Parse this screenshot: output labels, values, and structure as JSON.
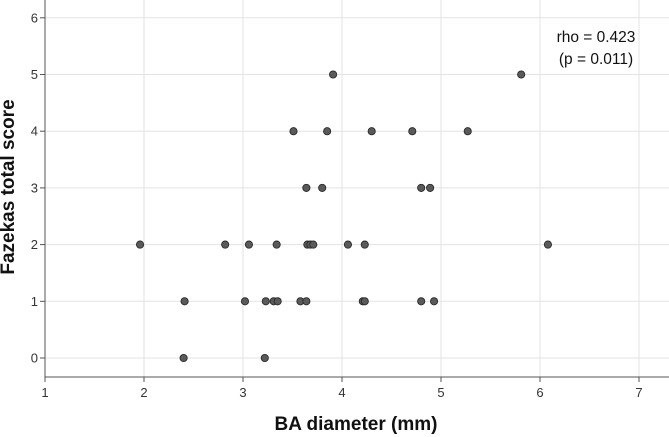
{
  "chart_data": {
    "type": "scatter",
    "title": "",
    "xlabel": "BA diameter (mm)",
    "ylabel": "Fazekas total score",
    "xlim": [
      1,
      7.3
    ],
    "ylim": [
      -0.3,
      6.3
    ],
    "xticks": [
      "1",
      "2",
      "3",
      "4",
      "5",
      "6",
      "7"
    ],
    "yticks": [
      "0",
      "1",
      "2",
      "3",
      "4",
      "5",
      "6"
    ],
    "grid": true,
    "legend": "none",
    "annotation": [
      "rho = 0.423",
      "(p = 0.011)"
    ],
    "point_color": "#5a5a5a",
    "points": [
      {
        "x": 1.96,
        "y": 2
      },
      {
        "x": 2.82,
        "y": 2
      },
      {
        "x": 3.06,
        "y": 2
      },
      {
        "x": 3.34,
        "y": 2
      },
      {
        "x": 3.65,
        "y": 2
      },
      {
        "x": 3.68,
        "y": 2
      },
      {
        "x": 3.71,
        "y": 2
      },
      {
        "x": 4.06,
        "y": 2
      },
      {
        "x": 4.23,
        "y": 2
      },
      {
        "x": 6.08,
        "y": 2
      },
      {
        "x": 2.41,
        "y": 1
      },
      {
        "x": 3.02,
        "y": 1
      },
      {
        "x": 3.23,
        "y": 1
      },
      {
        "x": 3.31,
        "y": 1
      },
      {
        "x": 3.35,
        "y": 1
      },
      {
        "x": 3.58,
        "y": 1
      },
      {
        "x": 3.64,
        "y": 1
      },
      {
        "x": 4.21,
        "y": 1
      },
      {
        "x": 4.23,
        "y": 1
      },
      {
        "x": 4.8,
        "y": 1
      },
      {
        "x": 4.93,
        "y": 1
      },
      {
        "x": 2.4,
        "y": 0
      },
      {
        "x": 3.22,
        "y": 0
      },
      {
        "x": 3.64,
        "y": 3
      },
      {
        "x": 3.8,
        "y": 3
      },
      {
        "x": 4.8,
        "y": 3
      },
      {
        "x": 4.89,
        "y": 3
      },
      {
        "x": 3.51,
        "y": 4
      },
      {
        "x": 3.85,
        "y": 4
      },
      {
        "x": 4.3,
        "y": 4
      },
      {
        "x": 4.71,
        "y": 4
      },
      {
        "x": 5.27,
        "y": 4
      },
      {
        "x": 3.91,
        "y": 5
      },
      {
        "x": 5.81,
        "y": 5
      }
    ]
  }
}
